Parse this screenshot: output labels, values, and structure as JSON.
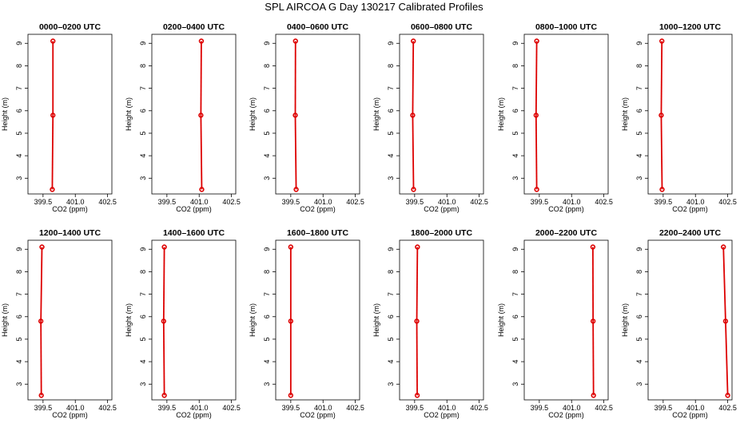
{
  "chart_data": {
    "type": "line",
    "title": "SPL AIRCOA G  Day 130217  Calibrated Profiles",
    "xlabel": "CO2 (ppm)",
    "ylabel": "Height (m)",
    "xlim": [
      398.8,
      402.7
    ],
    "ylim": [
      2.3,
      9.4
    ],
    "xticks": [
      399.5,
      401.0,
      402.5
    ],
    "xtick_labels": [
      "399.5",
      "401.0",
      "402.5"
    ],
    "yticks": [
      3,
      4,
      5,
      6,
      7,
      8,
      9
    ],
    "ytick_labels": [
      "3",
      "4",
      "5",
      "6",
      "7",
      "8",
      "9"
    ],
    "heights": [
      2.5,
      5.8,
      9.1
    ],
    "grid": false,
    "panels": [
      {
        "title": "0000–0200 UTC",
        "co2": [
          399.93,
          399.96,
          399.96
        ]
      },
      {
        "title": "0200–0400 UTC",
        "co2": [
          401.12,
          401.08,
          401.1
        ]
      },
      {
        "title": "0400–0600 UTC",
        "co2": [
          399.75,
          399.71,
          399.72
        ]
      },
      {
        "title": "0600–0800 UTC",
        "co2": [
          399.45,
          399.41,
          399.44
        ]
      },
      {
        "title": "0800–1000 UTC",
        "co2": [
          399.38,
          399.35,
          399.38
        ]
      },
      {
        "title": "1000–1200 UTC",
        "co2": [
          399.45,
          399.41,
          399.44
        ]
      },
      {
        "title": "1200–1400 UTC",
        "co2": [
          399.42,
          399.4,
          399.45
        ]
      },
      {
        "title": "1400–1600 UTC",
        "co2": [
          399.38,
          399.35,
          399.38
        ]
      },
      {
        "title": "1600–1800 UTC",
        "co2": [
          399.5,
          399.5,
          399.5
        ]
      },
      {
        "title": "1800–2000 UTC",
        "co2": [
          399.62,
          399.6,
          399.63
        ]
      },
      {
        "title": "2000–2200 UTC",
        "co2": [
          402.02,
          402.0,
          401.99
        ]
      },
      {
        "title": "2200–2400 UTC",
        "co2": [
          402.5,
          402.4,
          402.3
        ]
      }
    ]
  }
}
